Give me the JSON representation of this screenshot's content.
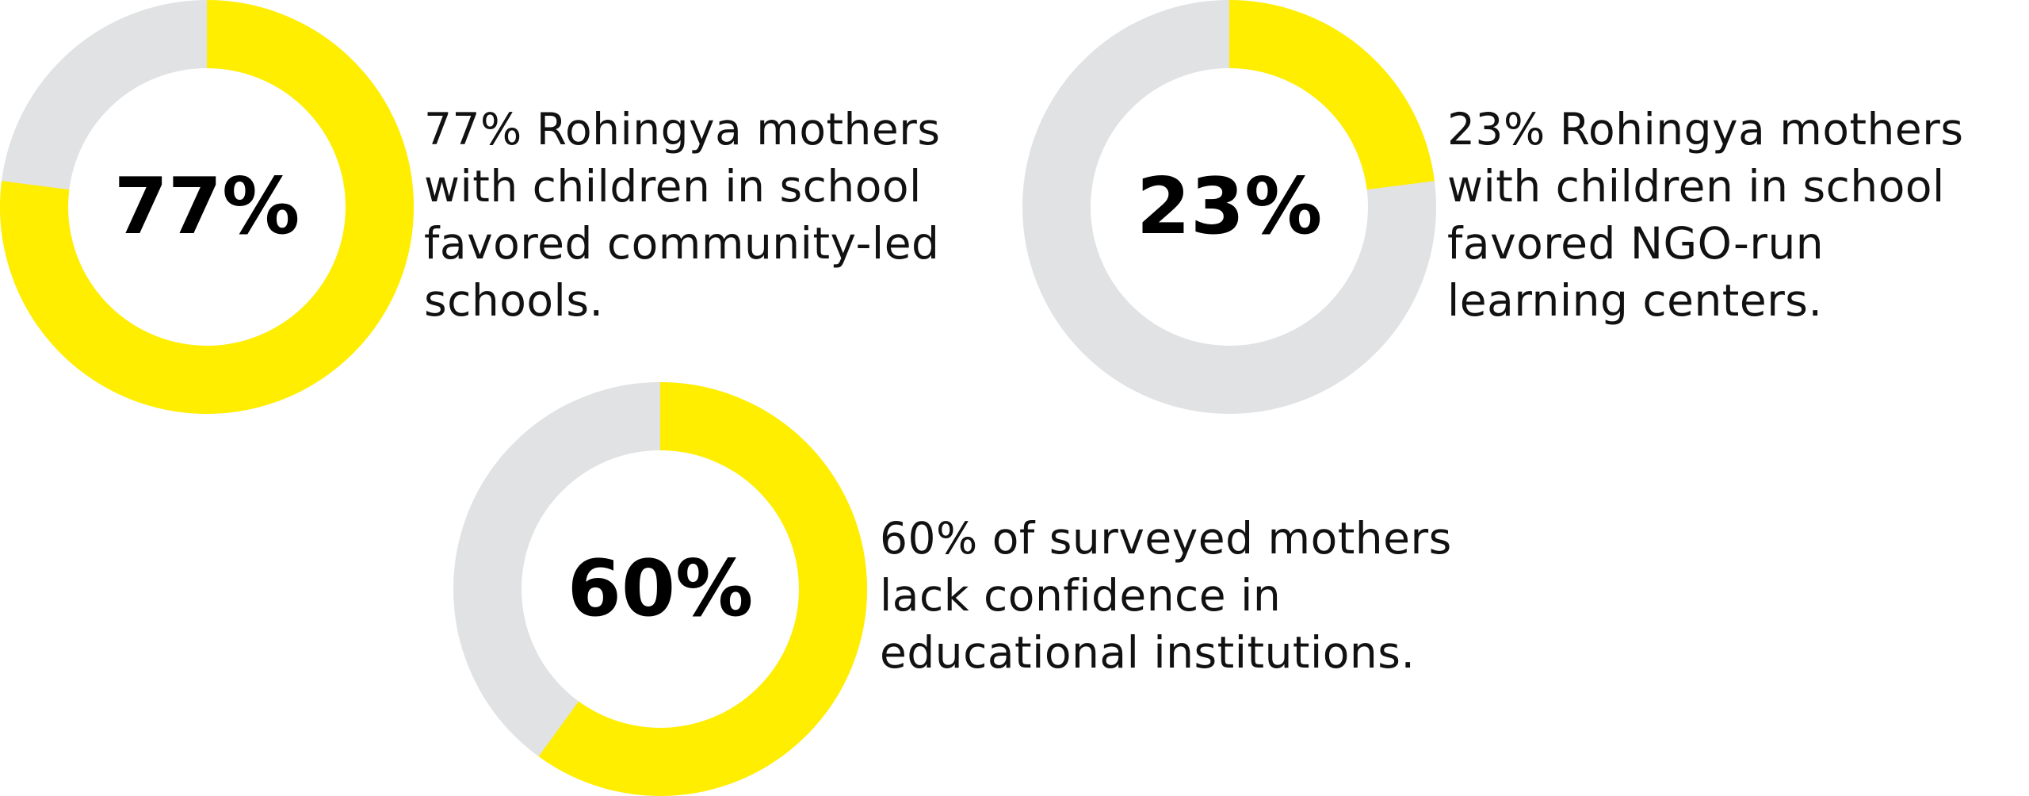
{
  "colors": {
    "filled": "#FFEE00",
    "remaining": "#E1E2E3",
    "text": "#111111"
  },
  "chart_data": [
    {
      "type": "pie",
      "variant": "donut",
      "value_percent": 77,
      "center_label": "77%",
      "caption_lines": [
        "77% Rohingya mothers",
        "with children in school",
        "favored community-led",
        "schools."
      ]
    },
    {
      "type": "pie",
      "variant": "donut",
      "value_percent": 23,
      "center_label": "23%",
      "caption_lines": [
        "23% Rohingya mothers",
        "with children in school",
        "favored NGO-run",
        "learning centers."
      ]
    },
    {
      "type": "pie",
      "variant": "donut",
      "value_percent": 60,
      "center_label": "60%",
      "caption_lines": [
        "60% of surveyed mothers",
        "lack confidence in",
        "educational institutions."
      ]
    }
  ]
}
